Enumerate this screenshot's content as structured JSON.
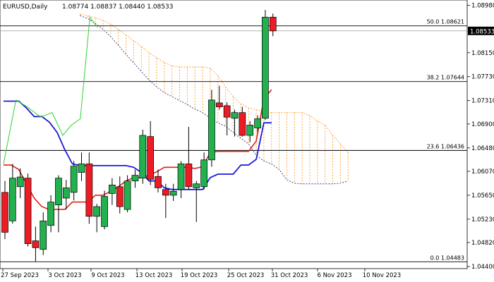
{
  "header": {
    "symbol": "EURUSD,Daily",
    "ohlc": "1.08774 1.08837 1.08440 1.08533"
  },
  "colors": {
    "bull": "#22b14c",
    "bear": "#ed1c24",
    "kijun": "#1a1ad8",
    "tenkan": "#e0201a",
    "chikou": "#2fd12f",
    "cloud": "#ff9a2e",
    "span_b": "#1a1a6a",
    "fib": "#000000",
    "current_price_bg": "#000000"
  },
  "y_axis": {
    "labels": [
      "1.08980",
      "1.08150",
      "1.07730",
      "1.07310",
      "1.06900",
      "1.06480",
      "1.06070",
      "1.05650",
      "1.05230",
      "1.04820",
      "1.04400"
    ],
    "current_price": "1.08533"
  },
  "x_axis": {
    "labels": [
      "27 Sep 2023",
      "3 Oct 2023",
      "9 Oct 2023",
      "13 Oct 2023",
      "19 Oct 2023",
      "25 Oct 2023",
      "31 Oct 2023",
      "6 Nov 2023",
      "10 Nov 2023"
    ]
  },
  "fib_levels": [
    {
      "label": "50.0 1.08621",
      "price": 1.08621
    },
    {
      "label": "38.2 1.07644",
      "price": 1.07644
    },
    {
      "label": "23.6 1.06436",
      "price": 1.06436
    },
    {
      "label": "0.0 1.04483",
      "price": 1.04483
    }
  ],
  "chart_data": {
    "type": "candlestick",
    "symbol": "EURUSD",
    "timeframe": "Daily",
    "ylim": [
      1.044,
      1.0905
    ],
    "candles": [
      {
        "o": 1.057,
        "h": 1.059,
        "l": 1.0488,
        "c": 1.05
      },
      {
        "o": 1.052,
        "h": 1.062,
        "l": 1.0515,
        "c": 1.0595
      },
      {
        "o": 1.058,
        "h": 1.0612,
        "l": 1.056,
        "c": 1.0597
      },
      {
        "o": 1.0595,
        "h": 1.0603,
        "l": 1.0475,
        "c": 1.048
      },
      {
        "o": 1.0485,
        "h": 1.051,
        "l": 1.0449,
        "c": 1.0473
      },
      {
        "o": 1.047,
        "h": 1.0535,
        "l": 1.046,
        "c": 1.052
      },
      {
        "o": 1.0512,
        "h": 1.0565,
        "l": 1.05,
        "c": 1.0553
      },
      {
        "o": 1.0548,
        "h": 1.06,
        "l": 1.05,
        "c": 1.0595
      },
      {
        "o": 1.056,
        "h": 1.0592,
        "l": 1.054,
        "c": 1.0578
      },
      {
        "o": 1.057,
        "h": 1.0625,
        "l": 1.0556,
        "c": 1.0616
      },
      {
        "o": 1.0605,
        "h": 1.064,
        "l": 1.059,
        "c": 1.062
      },
      {
        "o": 1.062,
        "h": 1.064,
        "l": 1.0515,
        "c": 1.0528
      },
      {
        "o": 1.0528,
        "h": 1.055,
        "l": 1.05,
        "c": 1.0545
      },
      {
        "o": 1.051,
        "h": 1.0573,
        "l": 1.0505,
        "c": 1.0563
      },
      {
        "o": 1.0568,
        "h": 1.0595,
        "l": 1.0548,
        "c": 1.0583
      },
      {
        "o": 1.058,
        "h": 1.0598,
        "l": 1.0533,
        "c": 1.0545
      },
      {
        "o": 1.054,
        "h": 1.06,
        "l": 1.0535,
        "c": 1.059
      },
      {
        "o": 1.059,
        "h": 1.061,
        "l": 1.0578,
        "c": 1.06
      },
      {
        "o": 1.0595,
        "h": 1.068,
        "l": 1.0585,
        "c": 1.067
      },
      {
        "o": 1.0668,
        "h": 1.0695,
        "l": 1.0583,
        "c": 1.0593
      },
      {
        "o": 1.0598,
        "h": 1.061,
        "l": 1.057,
        "c": 1.0578
      },
      {
        "o": 1.0575,
        "h": 1.0585,
        "l": 1.0525,
        "c": 1.0565
      },
      {
        "o": 1.0565,
        "h": 1.0585,
        "l": 1.0555,
        "c": 1.0572
      },
      {
        "o": 1.0575,
        "h": 1.0625,
        "l": 1.056,
        "c": 1.062
      },
      {
        "o": 1.062,
        "h": 1.0685,
        "l": 1.0575,
        "c": 1.058
      },
      {
        "o": 1.0578,
        "h": 1.059,
        "l": 1.0518,
        "c": 1.0585
      },
      {
        "o": 1.058,
        "h": 1.064,
        "l": 1.0575,
        "c": 1.0627
      },
      {
        "o": 1.0627,
        "h": 1.075,
        "l": 1.0615,
        "c": 1.0732
      },
      {
        "o": 1.0727,
        "h": 1.0757,
        "l": 1.0715,
        "c": 1.072
      },
      {
        "o": 1.0722,
        "h": 1.0728,
        "l": 1.067,
        "c": 1.0702
      },
      {
        "o": 1.07,
        "h": 1.0715,
        "l": 1.0668,
        "c": 1.071
      },
      {
        "o": 1.071,
        "h": 1.072,
        "l": 1.0668,
        "c": 1.067
      },
      {
        "o": 1.067,
        "h": 1.0695,
        "l": 1.0658,
        "c": 1.0688
      },
      {
        "o": 1.0683,
        "h": 1.0705,
        "l": 1.0675,
        "c": 1.0699
      },
      {
        "o": 1.07,
        "h": 1.089,
        "l": 1.0697,
        "c": 1.08774
      },
      {
        "o": 1.08774,
        "h": 1.08837,
        "l": 1.0844,
        "c": 1.08533
      }
    ],
    "fib_levels": [
      {
        "ratio": "50.0",
        "price": 1.08621
      },
      {
        "ratio": "38.2",
        "price": 1.07644
      },
      {
        "ratio": "23.6",
        "price": 1.06436
      },
      {
        "ratio": "0.0",
        "price": 1.04483
      }
    ],
    "kijun": [
      1.073,
      1.073,
      1.073,
      1.0718,
      1.0703,
      1.0703,
      1.0693,
      1.0675,
      1.0645,
      1.062,
      1.0617,
      1.0617,
      1.0617,
      1.0617,
      1.0617,
      1.0617,
      1.0617,
      1.0614,
      1.0605,
      1.059,
      1.059,
      1.0578,
      1.0575,
      1.0575,
      1.0575,
      1.0575,
      1.0575,
      1.0596,
      1.0602,
      1.0602,
      1.0602,
      1.0618,
      1.0618,
      1.0628,
      1.0692,
      1.0692
    ],
    "tenkan": [
      1.0618,
      1.0618,
      1.061,
      1.0585,
      1.056,
      1.0545,
      1.054,
      1.054,
      1.054,
      1.0553,
      1.0553,
      1.0553,
      1.0565,
      1.0565,
      1.0572,
      1.058,
      1.059,
      1.0596,
      1.0596,
      1.06,
      1.0606,
      1.0614,
      1.0614,
      1.0614,
      1.0614,
      1.0612,
      1.0615,
      1.064,
      1.0642,
      1.0642,
      1.0642,
      1.0642,
      1.0642,
      1.066,
      1.0735,
      1.075
    ],
    "chikou": [
      1.062,
      1.0732,
      1.072,
      1.0702,
      1.071,
      1.067,
      1.0688,
      1.0699,
      1.08774,
      1.086
    ],
    "span_a": [
      null,
      null,
      null,
      null,
      null,
      null,
      null,
      null,
      null,
      null,
      1.0883,
      1.088,
      1.0876,
      1.0872,
      1.0865,
      1.0856,
      1.0846,
      1.0836,
      1.0826,
      1.0815,
      1.0806,
      1.0798,
      1.0792,
      1.079,
      1.079,
      1.079,
      1.079,
      1.0788,
      1.0775,
      1.0755,
      1.0738,
      1.0725,
      1.0718,
      1.0715,
      1.0712,
      1.071,
      1.071,
      1.071,
      1.071,
      1.071,
      1.0705,
      1.0695,
      1.0688,
      1.067,
      1.0655,
      1.064
    ],
    "span_b": [
      null,
      null,
      null,
      null,
      null,
      null,
      null,
      null,
      null,
      null,
      1.088,
      1.0875,
      1.0866,
      1.0856,
      1.0843,
      1.0828,
      1.0812,
      1.0797,
      1.0782,
      1.0767,
      1.0755,
      1.0745,
      1.0738,
      1.0731,
      1.0724,
      1.0716,
      1.071,
      1.07,
      1.0692,
      1.0686,
      1.0675,
      1.0665,
      1.0655,
      1.0635,
      1.0625,
      1.062,
      1.061,
      1.0592,
      1.0586,
      1.0585,
      1.0585,
      1.0585,
      1.0585,
      1.0585,
      1.0586,
      1.059
    ]
  }
}
